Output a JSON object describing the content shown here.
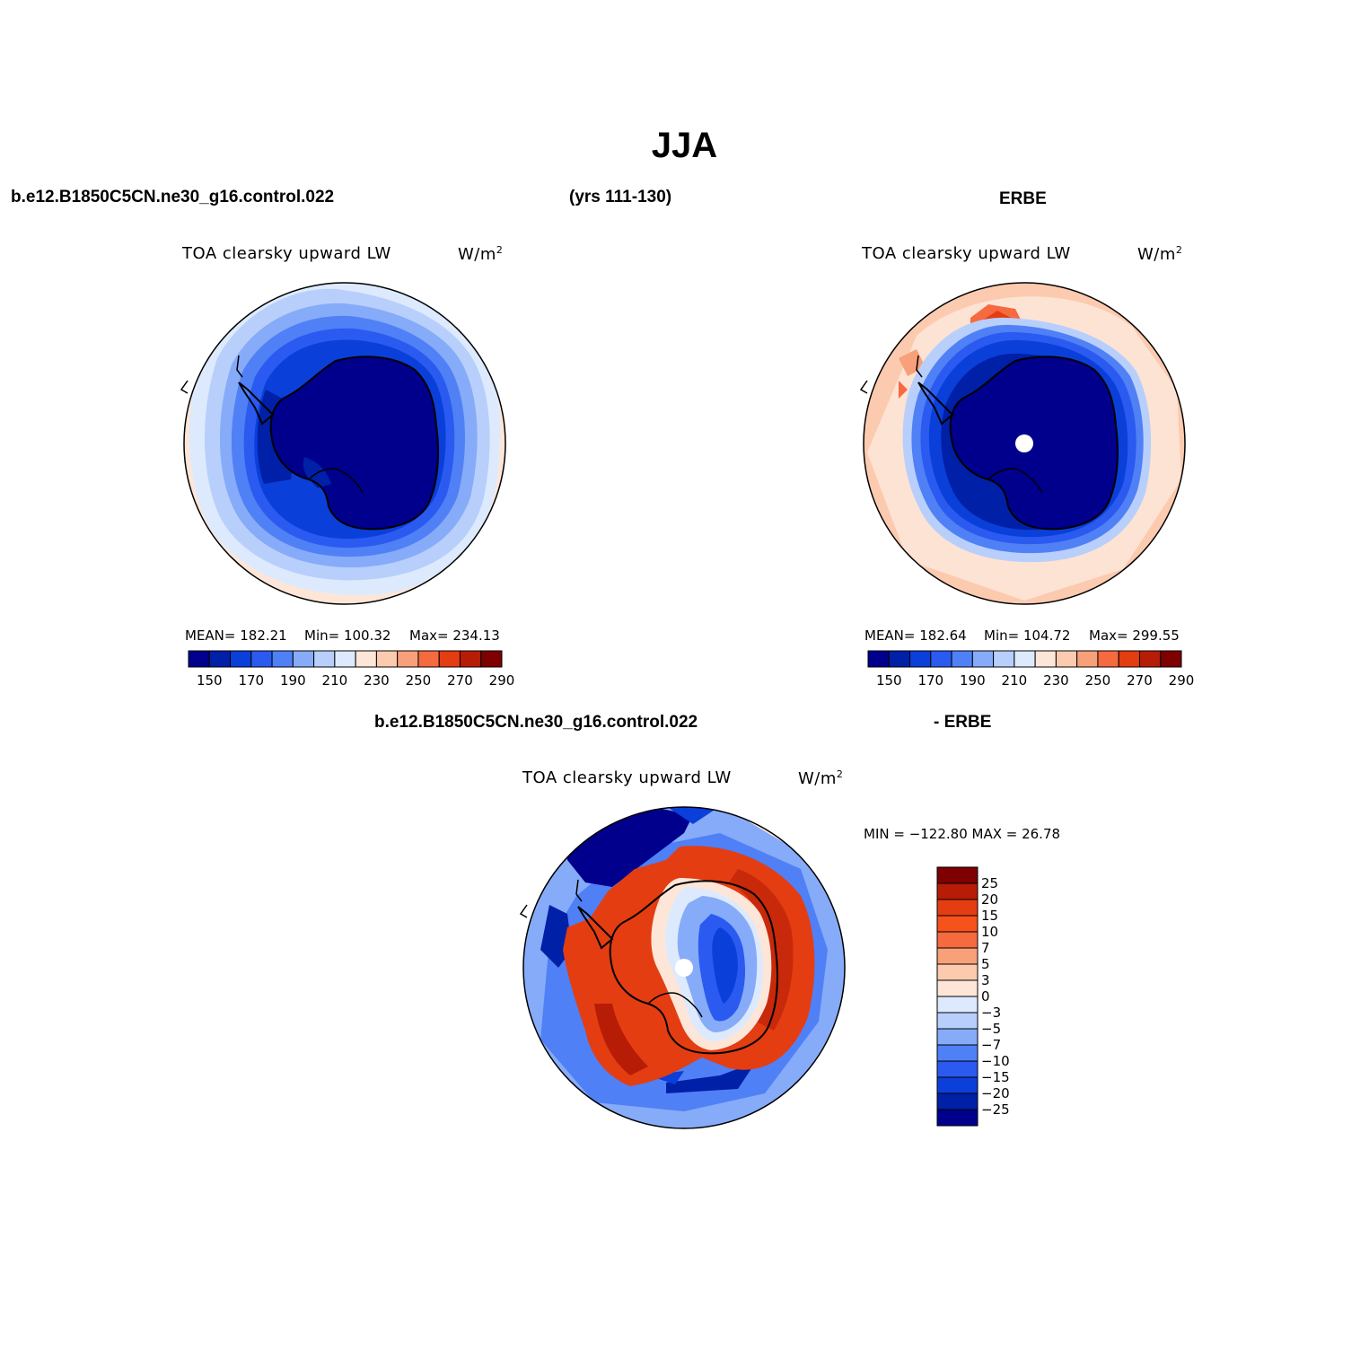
{
  "title": "JJA",
  "top": {
    "left_case": "b.e12.B1850C5CN.ne30_g16.control.022",
    "years": "(yrs 111-130)",
    "right_case": "ERBE"
  },
  "bottom": {
    "left_case": "b.e12.B1850C5CN.ne30_g16.control.022",
    "right_case": "- ERBE"
  },
  "panels": {
    "model": {
      "variable": "TOA clearsky upward LW",
      "units": "W/m",
      "units_sup": "2",
      "mean": "MEAN= 182.21",
      "min": "Min= 100.32",
      "max": "Max= 234.13"
    },
    "obs": {
      "variable": "TOA clearsky upward LW",
      "units": "W/m",
      "units_sup": "2",
      "mean": "MEAN= 182.64",
      "min": "Min= 104.72",
      "max": "Max= 299.55"
    },
    "diff": {
      "variable": "TOA clearsky upward LW",
      "units": "W/m",
      "units_sup": "2",
      "minmax": "MIN = −122.80 MAX =   26.78"
    }
  },
  "colorbar_abs": {
    "colors": [
      "#00008c",
      "#0020a8",
      "#0a3fd9",
      "#2a5af0",
      "#5080f5",
      "#86abf8",
      "#b8cffc",
      "#ddeafd",
      "#fde6d8",
      "#fccaaf",
      "#f8a07a",
      "#f66a40",
      "#e43d12",
      "#b71c06",
      "#7e0000"
    ],
    "labels": [
      "150",
      "170",
      "190",
      "210",
      "230",
      "250",
      "270",
      "290"
    ]
  },
  "colorbar_diff": {
    "colors": [
      "#7e0000",
      "#b71c06",
      "#e43d12",
      "#f6521c",
      "#f66a40",
      "#f8a07a",
      "#fccaaf",
      "#fde6d8",
      "#ddeafd",
      "#b8cffc",
      "#86abf8",
      "#5080f5",
      "#2a5af0",
      "#0a3fd9",
      "#0020a8",
      "#00008c"
    ],
    "labels": [
      "25",
      "20",
      "15",
      "10",
      "7",
      "5",
      "3",
      "0",
      "−3",
      "−5",
      "−7",
      "−10",
      "−15",
      "−20",
      "−25"
    ]
  },
  "map_colors": {
    "deep": "#00008c",
    "blue1": "#0020a8",
    "blue2": "#0a3fd9",
    "blue3": "#2a5af0",
    "blue4": "#5080f5",
    "blue5": "#86abf8",
    "blue6": "#b8cffc",
    "blue7": "#ddeafd",
    "warm1": "#fde6d8",
    "warm2": "#fccaaf",
    "warm3": "#f8a07a",
    "warm4": "#f66a40",
    "warm5": "#e43d12",
    "warm6": "#b71c06"
  }
}
